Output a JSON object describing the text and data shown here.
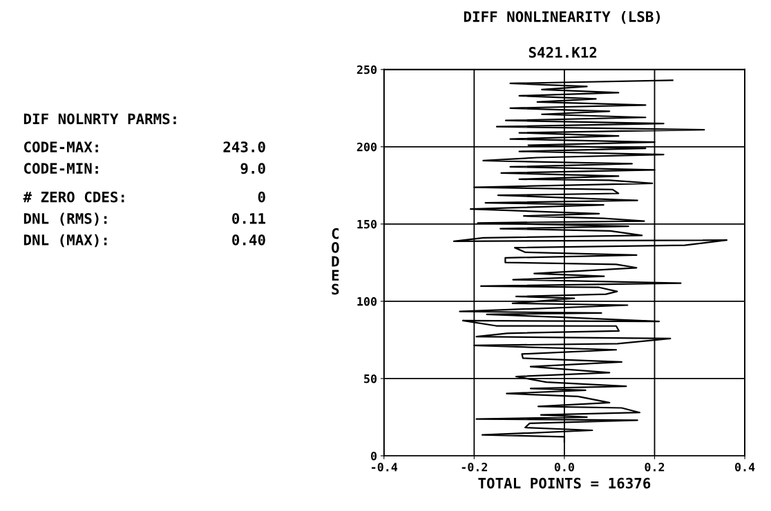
{
  "chart_data": {
    "type": "line",
    "title": "DIFF NONLINEARITY (LSB)",
    "subtitle": "S421.K12",
    "xlabel": "TOTAL POINTS = 16376",
    "ylabel": "CODES",
    "annotations": [
      "DIF NOLNRTY PARMS:",
      "CODE-MAX:",
      "243.0",
      "CODE-MIN:",
      "9.0",
      "# ZERO CDES:",
      "0",
      "DNL (RMS):",
      "0.11",
      "DNL (MAX):",
      "0.40"
    ],
    "series": [
      {
        "color": "#000000",
        "x": [
          0.0,
          0.0,
          -0.182,
          0.062,
          -0.087,
          -0.077,
          0.162,
          -0.195,
          0.05,
          -0.052,
          0.167,
          0.127,
          -0.058,
          0.1,
          0.03,
          -0.128,
          0.047,
          -0.075,
          0.137,
          -0.04,
          -0.107,
          0.1,
          -0.075,
          0.127,
          -0.092,
          -0.094,
          0.115,
          -0.2,
          0.118,
          0.235,
          -0.195,
          -0.127,
          0.121,
          0.115,
          -0.151,
          -0.225,
          0.21,
          -0.012,
          -0.172,
          0.082,
          -0.232,
          0.14,
          -0.115,
          0.022,
          -0.107,
          0.092,
          0.117,
          0.077,
          -0.185,
          0.258,
          -0.114,
          0.088,
          -0.067,
          0.16,
          0.115,
          -0.131,
          -0.131,
          0.16,
          -0.087,
          -0.11,
          0.267,
          0.36,
          -0.245,
          -0.18,
          0.172,
          0.102,
          -0.142,
          0.142,
          -0.192,
          0.177,
          0.087,
          -0.09,
          0.077,
          -0.208,
          0.087,
          -0.175,
          0.162,
          -0.147,
          0.12,
          0.107,
          -0.2,
          0.195,
          0.1,
          -0.1,
          0.12,
          -0.14,
          0.2,
          -0.12,
          0.15,
          -0.18,
          -0.06,
          0.22,
          -0.1,
          0.18,
          -0.08,
          0.2,
          -0.12,
          0.12,
          -0.1,
          0.31,
          -0.15,
          0.22,
          -0.13,
          0.18,
          -0.05,
          0.1,
          -0.12,
          0.18,
          -0.06,
          0.07,
          -0.1,
          0.12,
          -0.05,
          0.05,
          -0.12,
          0.24
        ],
        "values": [
          9,
          12.3,
          13.5,
          16.5,
          18.3,
          21,
          23,
          23.8,
          25,
          26.5,
          28,
          31,
          32,
          34.4,
          38.4,
          40.3,
          42.4,
          43.6,
          45,
          47.7,
          51.3,
          53.8,
          57.7,
          60.7,
          63.2,
          65.9,
          68.6,
          71.4,
          72.6,
          75.9,
          77.1,
          79.3,
          80.8,
          84,
          84.1,
          87.5,
          87,
          89.7,
          91.5,
          92.4,
          93.4,
          97.5,
          98.7,
          101.9,
          103.1,
          104.6,
          106.4,
          109,
          109.8,
          111.7,
          114,
          116.2,
          118,
          121.7,
          123.9,
          125.1,
          128.1,
          129.9,
          131.7,
          134.7,
          136.3,
          139.6,
          138.8,
          141.1,
          142.6,
          145.5,
          147,
          148.5,
          150.7,
          151.9,
          153.7,
          155.2,
          156.7,
          159.7,
          162.4,
          163.7,
          165.3,
          168.6,
          169.8,
          172.3,
          173.8,
          176.3,
          178.3,
          179,
          181,
          183,
          185,
          187,
          189,
          191,
          193,
          195,
          197,
          199,
          201,
          203,
          205,
          207,
          209,
          211,
          213,
          215,
          217,
          219,
          221,
          223,
          225,
          227,
          229,
          231,
          233,
          235,
          237,
          239,
          241,
          243
        ]
      }
    ],
    "xlim": [
      -0.4,
      0.4
    ],
    "xticks": [
      {
        "value": -0.4,
        "label": "-0.4"
      },
      {
        "value": -0.2,
        "label": "-0.2"
      },
      {
        "value": 0.0,
        "label": "0.0"
      },
      {
        "value": 0.2,
        "label": "0.2"
      },
      {
        "value": 0.4,
        "label": "0.4"
      }
    ],
    "ylim": [
      0,
      250
    ],
    "yticks": [
      0,
      50,
      100,
      150,
      200,
      250
    ],
    "grid": true
  }
}
